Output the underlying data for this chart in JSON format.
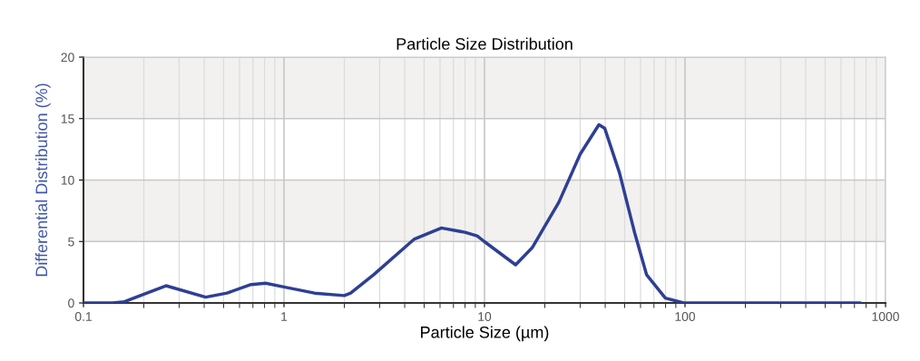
{
  "chart_data": {
    "type": "line",
    "title": "Particle Size Distribution",
    "xlabel": "Particle Size (µm)",
    "ylabel": "Differential Distribution (%)",
    "log": "x",
    "grid": true,
    "xlim": [
      0.1,
      1000
    ],
    "xticks": [
      {
        "value": 0.1,
        "label": "0.1"
      },
      1,
      10,
      100,
      1000
    ],
    "ylim": [
      0,
      20
    ],
    "yticks": [
      0,
      5,
      10,
      15,
      20
    ],
    "bands": [
      {
        "axis": "y",
        "from": 5,
        "to": 10,
        "color": "#f2f1ef"
      },
      {
        "axis": "y",
        "from": 15,
        "to": 20,
        "color": "#f2f1ef"
      }
    ],
    "series": [
      {
        "color": "#2e3f94",
        "x": [
          0.1,
          0.14,
          0.16,
          0.196,
          0.258,
          0.407,
          0.519,
          0.685,
          0.81,
          1.0,
          1.42,
          2.0,
          2.15,
          2.8,
          4.47,
          6.1,
          8.0,
          9.2,
          9.97,
          14.3,
          17.3,
          23.5,
          30.0,
          37.2,
          39.8,
          47.1,
          56.1,
          64.3,
          79.8,
          98.4,
          750
        ],
        "values": [
          0,
          0,
          0.1,
          0.66,
          1.4,
          0.47,
          0.8,
          1.5,
          1.6,
          1.3,
          0.8,
          0.6,
          0.8,
          2.3,
          5.2,
          6.1,
          5.75,
          5.45,
          5.0,
          3.1,
          4.5,
          8.2,
          12.1,
          14.5,
          14.2,
          10.6,
          5.7,
          2.3,
          0.4,
          0,
          0
        ]
      }
    ]
  }
}
